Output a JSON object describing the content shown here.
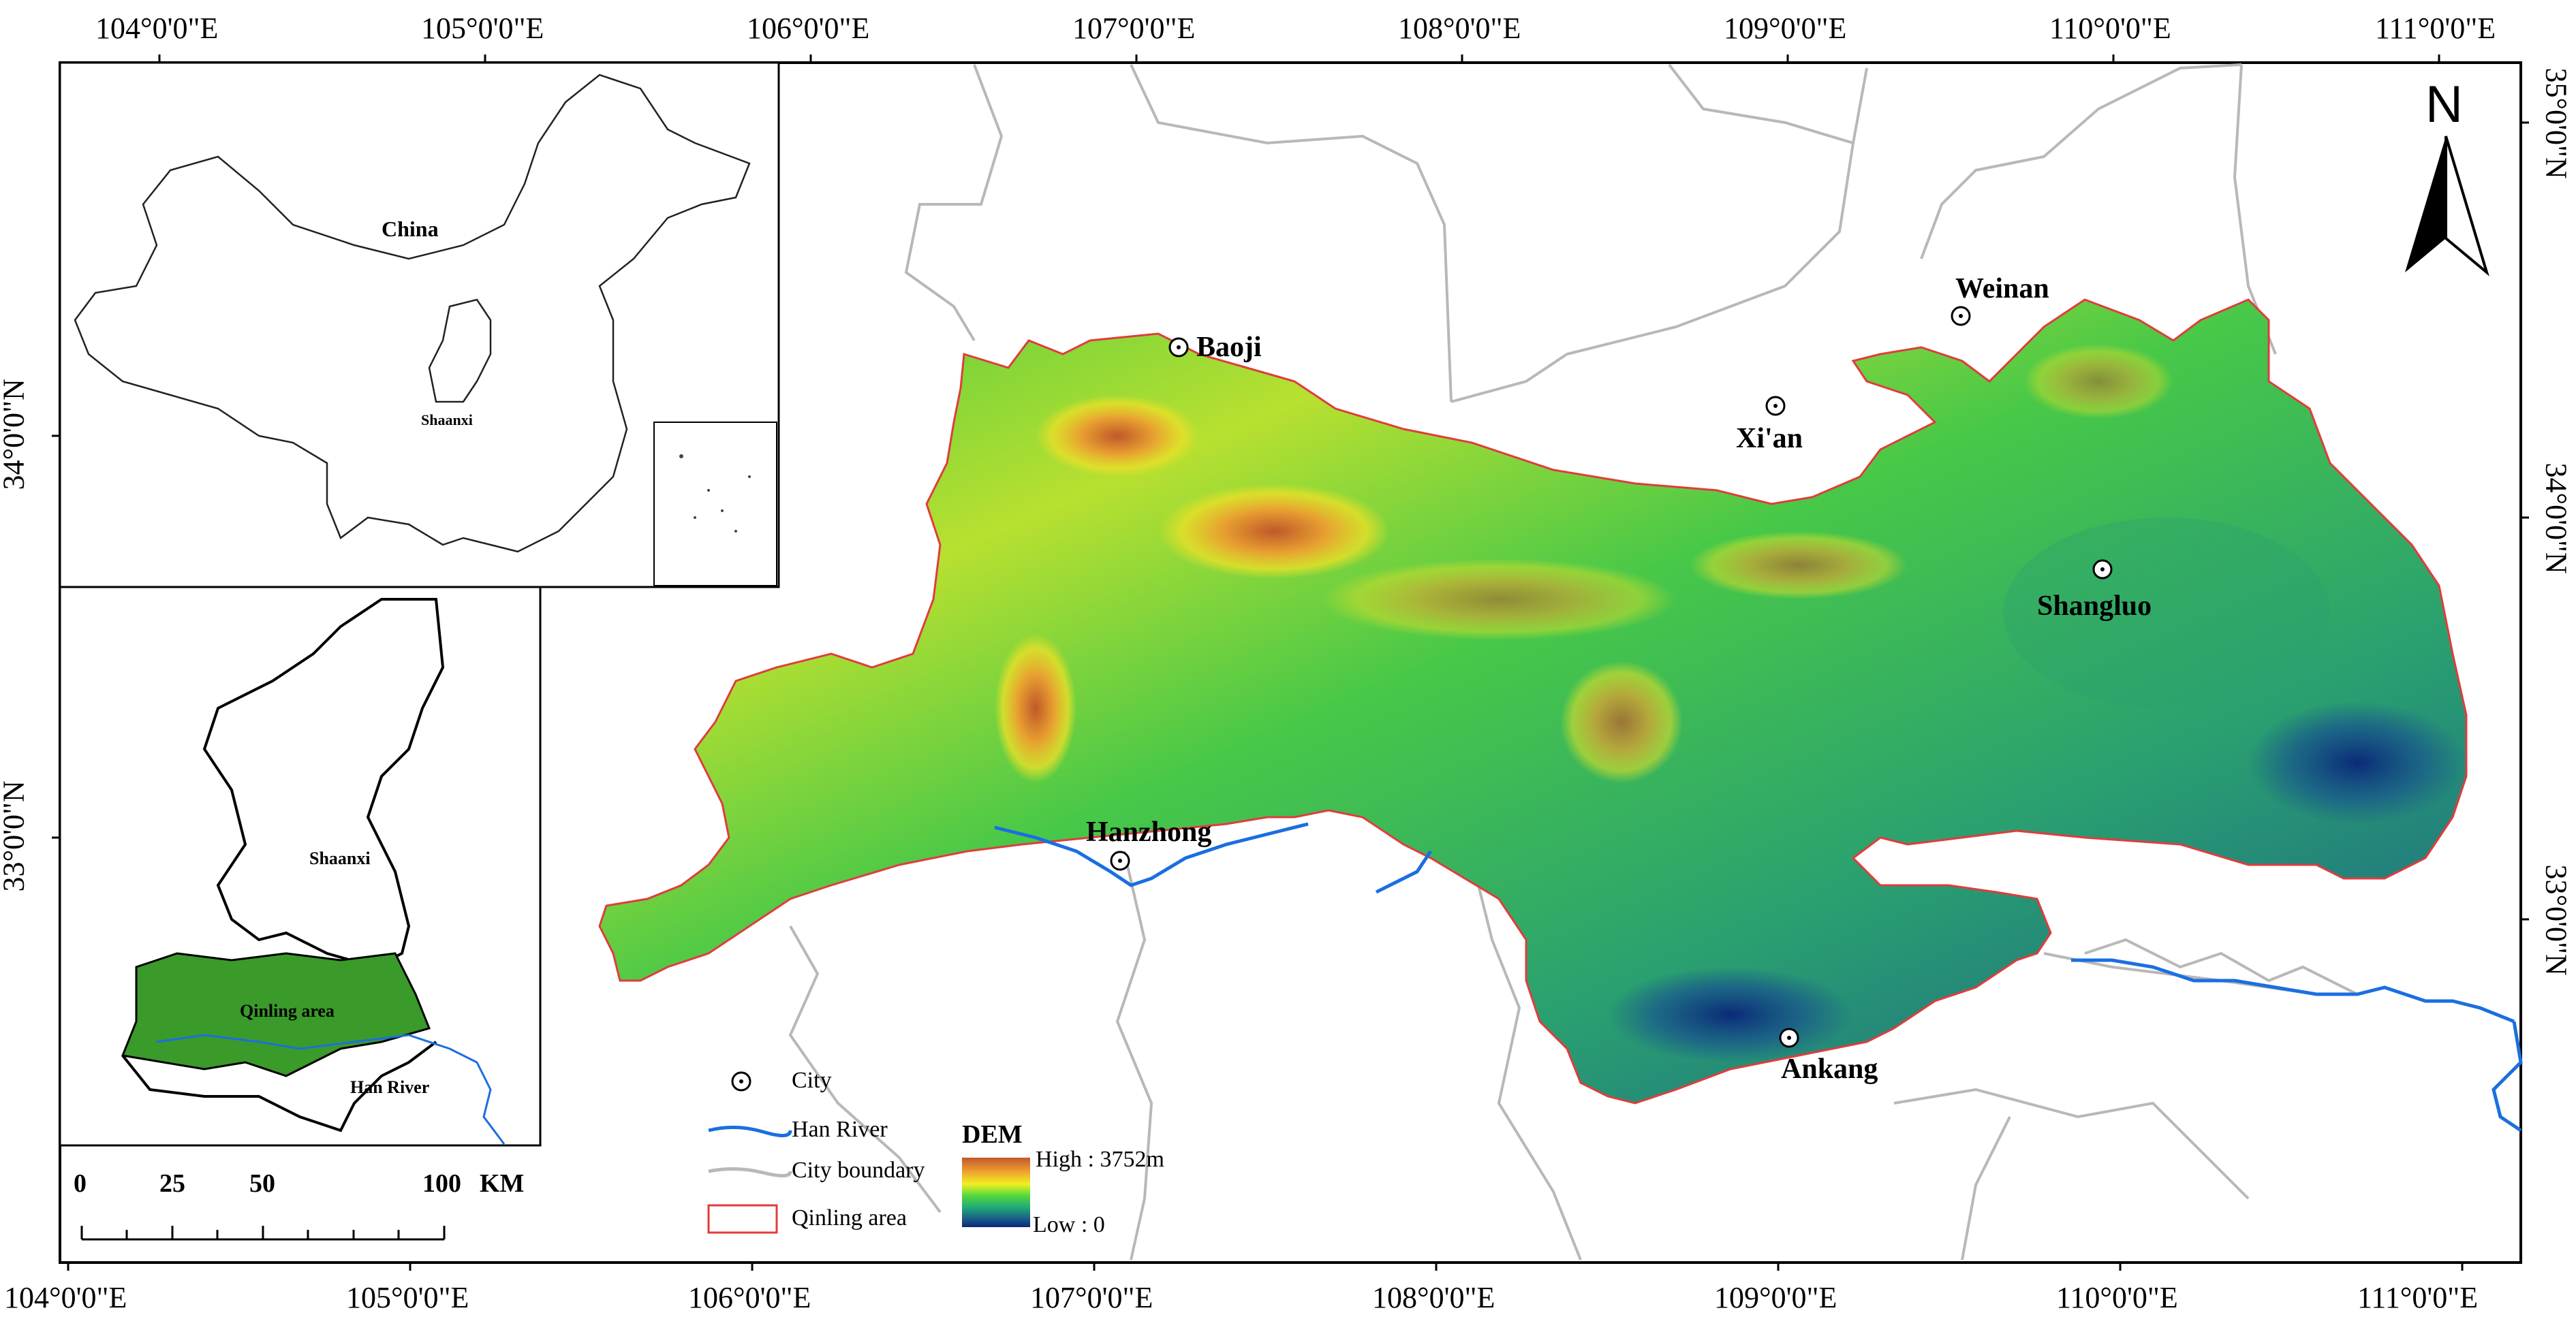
{
  "grid": {
    "top_longitudes": [
      "104°0'0\"E",
      "105°0'0\"E",
      "106°0'0\"E",
      "107°0'0\"E",
      "108°0'0\"E",
      "109°0'0\"E",
      "110°0'0\"E",
      "111°0'0\"E"
    ],
    "bottom_longitudes": [
      "104°0'0\"E",
      "105°0'0\"E",
      "106°0'0\"E",
      "107°0'0\"E",
      "108°0'0\"E",
      "109°0'0\"E",
      "110°0'0\"E",
      "111°0'0\"E"
    ],
    "left_latitudes": [
      "34°0'0\"N",
      "33°0'0\"N"
    ],
    "right_latitudes": [
      "35°0'0\"N",
      "34°0'0\"N",
      "33°0'0\"N"
    ]
  },
  "cities": [
    {
      "name": "Baoji"
    },
    {
      "name": "Weinan"
    },
    {
      "name": "Xi'an"
    },
    {
      "name": "Shangluo"
    },
    {
      "name": "Hanzhong"
    },
    {
      "name": "Ankang"
    }
  ],
  "inset_china": {
    "country_label": "China",
    "province_label": "Shaanxi"
  },
  "inset_shaanxi": {
    "province_label": "Shaanxi",
    "area_label": "Qinling area",
    "river_label": "Han River"
  },
  "north_arrow": {
    "label": "N"
  },
  "scale_bar": {
    "ticks": [
      "0",
      "25",
      "50",
      "100"
    ],
    "unit": "KM"
  },
  "legend": {
    "city": "City",
    "river": "Han River",
    "boundary": "City boundary",
    "area": "Qinling area",
    "dem_title": "DEM",
    "dem_high": "High : 3752m",
    "dem_low": "Low : 0"
  },
  "colors": {
    "river": "#1a6fe0",
    "boundary": "#b4b4b4",
    "area_outline": "#e03c3c",
    "inset_fill": "#3a9a2a",
    "dem_ramp": [
      "#c0582a",
      "#f0a030",
      "#f0f020",
      "#50d840",
      "#20a878",
      "#1a5c8a",
      "#0a2a78"
    ]
  }
}
